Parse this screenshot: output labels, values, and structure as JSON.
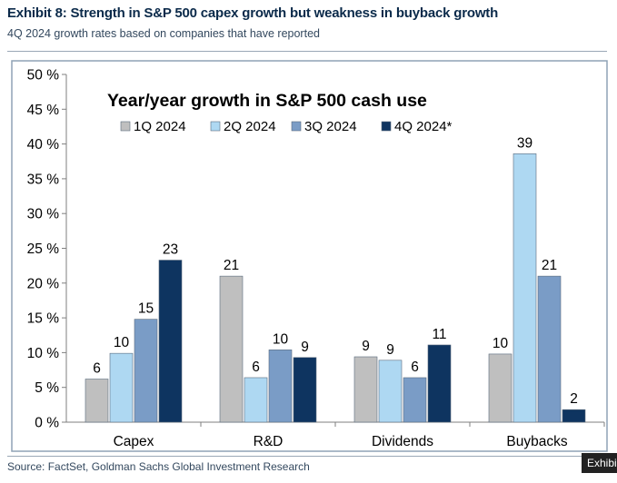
{
  "header": {
    "title": "Exhibit 8: Strength in S&P 500 capex growth but weakness in buyback growth",
    "subtitle": "4Q 2024 growth rates based on companies that have reported"
  },
  "footer": {
    "source": "Source: FactSet, Goldman Sachs Global Investment Research",
    "tag": "Exhibi"
  },
  "chart_data": {
    "type": "bar",
    "title": "Year/year growth in S&P 500 cash use",
    "categories": [
      "Capex",
      "R&D",
      "Dividends",
      "Buybacks"
    ],
    "series": [
      {
        "name": "1Q 2024",
        "color": "#bfbfbf",
        "values": [
          6,
          21,
          9,
          10
        ],
        "exact": [
          6.2,
          21.0,
          9.4,
          9.8
        ]
      },
      {
        "name": "2Q 2024",
        "color": "#aed8f2",
        "values": [
          10,
          6,
          9,
          39
        ],
        "exact": [
          9.9,
          6.4,
          8.9,
          38.6
        ]
      },
      {
        "name": "3Q 2024",
        "color": "#7a9cc6",
        "values": [
          15,
          10,
          6,
          21
        ],
        "exact": [
          14.8,
          10.4,
          6.4,
          21.0
        ]
      },
      {
        "name": "4Q 2024*",
        "color": "#0e3460",
        "values": [
          23,
          9,
          11,
          2
        ],
        "exact": [
          23.3,
          9.3,
          11.1,
          1.8
        ]
      }
    ],
    "yticks": [
      "0 %",
      "5 %",
      "10 %",
      "15 %",
      "20 %",
      "25 %",
      "30 %",
      "35 %",
      "40 %",
      "45 %",
      "50 %"
    ],
    "ylim": [
      0,
      50
    ],
    "ystep": 5,
    "xlabel": "",
    "ylabel": ""
  }
}
